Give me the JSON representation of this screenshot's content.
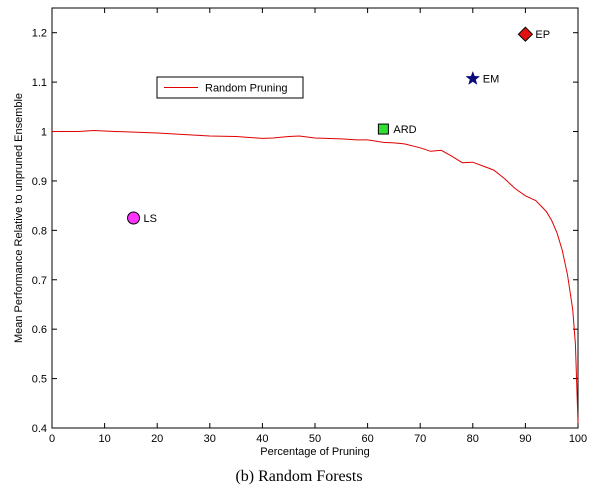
{
  "chart_data": {
    "type": "line",
    "xlabel": "Percentage of Pruning",
    "ylabel": "Mean Performance Relative to unpruned Ensemble",
    "xlim": [
      0,
      100
    ],
    "ylim": [
      0.4,
      1.25
    ],
    "xticks": [
      0,
      10,
      20,
      30,
      40,
      50,
      60,
      70,
      80,
      90,
      100
    ],
    "yticks": [
      0.4,
      0.5,
      0.6,
      0.7,
      0.8,
      0.9,
      1,
      1.1,
      1.2
    ],
    "grid": false,
    "legend_position": "upper-left",
    "series": [
      {
        "name": "Random Pruning",
        "color": "#e00000",
        "x": [
          0,
          5,
          8,
          12,
          15,
          20,
          25,
          30,
          35,
          40,
          42,
          45,
          47,
          50,
          55,
          58,
          60,
          63,
          65,
          67,
          70,
          72,
          74,
          76,
          78,
          80,
          82,
          84,
          86,
          88,
          90,
          92,
          94,
          95,
          96,
          97,
          98,
          99,
          99.5,
          100
        ],
        "y": [
          1.0,
          1.0,
          1.002,
          1.0,
          0.999,
          0.997,
          0.994,
          0.991,
          0.99,
          0.986,
          0.987,
          0.99,
          0.991,
          0.987,
          0.985,
          0.983,
          0.983,
          0.978,
          0.977,
          0.975,
          0.967,
          0.96,
          0.962,
          0.95,
          0.937,
          0.938,
          0.93,
          0.922,
          0.905,
          0.885,
          0.87,
          0.86,
          0.838,
          0.82,
          0.795,
          0.76,
          0.71,
          0.64,
          0.57,
          0.41
        ]
      }
    ],
    "points": [
      {
        "label": "LS",
        "x": 15.5,
        "y": 0.825,
        "marker": "circle",
        "color": "#ff33ff"
      },
      {
        "label": "ARD",
        "x": 63,
        "y": 1.005,
        "marker": "square",
        "color": "#33dd33"
      },
      {
        "label": "EM",
        "x": 80,
        "y": 1.107,
        "marker": "star",
        "color": "#0a0a7a"
      },
      {
        "label": "EP",
        "x": 90,
        "y": 1.197,
        "marker": "diamond",
        "color": "#e41010"
      }
    ]
  },
  "caption": "(b) Random Forests"
}
